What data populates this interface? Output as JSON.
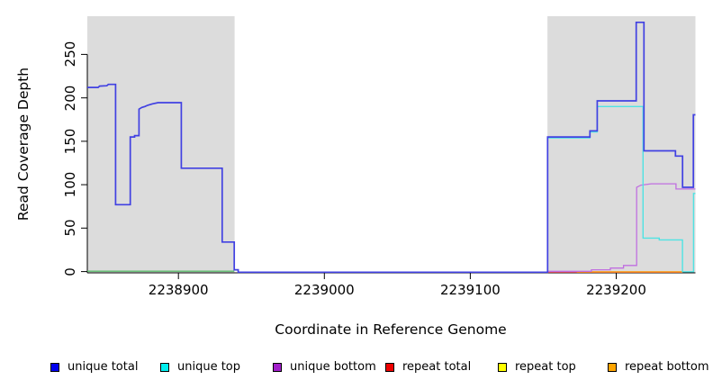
{
  "chart_data": {
    "type": "line",
    "title": "",
    "xlabel": "Coordinate in Reference Genome",
    "ylabel": "Read Coverage Depth",
    "xlim": [
      2238837.6,
      2239254.3
    ],
    "ylim": [
      -1.5,
      294
    ],
    "grid": false,
    "plot_background": "#FFFFFF",
    "x_ticks": [
      {
        "value": 2238900,
        "label": "2238900"
      },
      {
        "value": 2239000,
        "label": "2239000"
      },
      {
        "value": 2239100,
        "label": "2239100"
      },
      {
        "value": 2239200,
        "label": "2239200"
      }
    ],
    "y_ticks": [
      {
        "value": 0,
        "label": "0"
      },
      {
        "value": 50,
        "label": "50"
      },
      {
        "value": 100,
        "label": "100"
      },
      {
        "value": 150,
        "label": "150"
      },
      {
        "value": 200,
        "label": "200"
      },
      {
        "value": 250,
        "label": "250"
      }
    ],
    "shaded_regions": [
      {
        "x0": 2238837.6,
        "x1": 2238938.5,
        "color": "#DCDCDC"
      },
      {
        "x0": 2239152.9,
        "x1": 2239254.3,
        "color": "#DCDCDC"
      }
    ],
    "series": [
      {
        "name": "repeat top",
        "color": "#F2F200",
        "line_width": 1.3,
        "in_legend": true,
        "points": []
      },
      {
        "name": "repeat total",
        "color": "#D04558",
        "line_width": 1.3,
        "in_legend": true,
        "points": [
          [
            2239153,
            -0.8
          ],
          [
            2239245.5,
            -0.8
          ]
        ]
      },
      {
        "name": "repeat bottom",
        "color": "#FF9800",
        "line_width": 1.4,
        "in_legend": true,
        "points": [
          [
            2239173,
            -0.4
          ],
          [
            2239245.5,
            -0.4
          ]
        ]
      },
      {
        "name": "unlabeled green baseline",
        "color": "#5DBD6D",
        "line_width": 1.3,
        "in_legend": false,
        "points": [
          [
            2238837.6,
            0.4
          ],
          [
            2238938.3,
            0.4
          ]
        ]
      },
      {
        "name": "unique bottom",
        "color": "#C06FE0",
        "line_width": 1.3,
        "in_legend": true,
        "points": [
          [
            2239153,
            0.3
          ],
          [
            2239183,
            0.3
          ],
          [
            2239183,
            2
          ],
          [
            2239196,
            2
          ],
          [
            2239196,
            4
          ],
          [
            2239205,
            4
          ],
          [
            2239205,
            7
          ],
          [
            2239214,
            7
          ],
          [
            2239214,
            97
          ],
          [
            2239217,
            99.5
          ],
          [
            2239224,
            101
          ],
          [
            2239241,
            101
          ],
          [
            2239241,
            95
          ],
          [
            2239254.3,
            95
          ]
        ]
      },
      {
        "name": "unique top",
        "color": "#4FE3E3",
        "line_width": 1.4,
        "in_legend": true,
        "points": [
          [
            2239153,
            -0.5
          ],
          [
            2239153,
            153.8
          ],
          [
            2239182,
            153.8
          ],
          [
            2239182,
            160.8
          ],
          [
            2239187,
            160.8
          ],
          [
            2239187,
            190
          ],
          [
            2239218.4,
            190
          ],
          [
            2239218.4,
            38.5
          ],
          [
            2239229.5,
            38.5
          ],
          [
            2239229.5,
            36.5
          ],
          [
            2239245.4,
            36.5
          ],
          [
            2239245.4,
            -0.3
          ],
          [
            2239253,
            -0.3
          ],
          [
            2239253,
            90
          ],
          [
            2239254.3,
            90
          ]
        ]
      },
      {
        "name": "unique total",
        "color": "#4141E2",
        "line_width": 1.7,
        "in_legend": true,
        "points": [
          [
            2238837.6,
            212
          ],
          [
            2238845,
            212
          ],
          [
            2238846,
            213.5
          ],
          [
            2238851,
            214
          ],
          [
            2238852,
            215.5
          ],
          [
            2238857,
            215.5
          ],
          [
            2238857,
            77
          ],
          [
            2238867,
            77
          ],
          [
            2238867,
            155
          ],
          [
            2238870,
            155
          ],
          [
            2238870,
            156.5
          ],
          [
            2238873,
            156.5
          ],
          [
            2238873,
            187
          ],
          [
            2238875,
            189
          ],
          [
            2238877,
            190
          ],
          [
            2238879,
            191.5
          ],
          [
            2238882,
            193
          ],
          [
            2238886,
            194.5
          ],
          [
            2238902,
            194.5
          ],
          [
            2238902,
            119
          ],
          [
            2238930,
            119
          ],
          [
            2238930,
            34
          ],
          [
            2238938.3,
            34
          ],
          [
            2238938.3,
            2
          ],
          [
            2238941,
            2
          ],
          [
            2238941,
            -0.8
          ],
          [
            2239153,
            -0.8
          ],
          [
            2239153,
            155
          ],
          [
            2239182,
            155
          ],
          [
            2239182,
            162
          ],
          [
            2239187,
            162
          ],
          [
            2239187,
            196.5
          ],
          [
            2239213.7,
            196.5
          ],
          [
            2239213.7,
            287
          ],
          [
            2239219,
            287
          ],
          [
            2239219,
            139
          ],
          [
            2239240.6,
            139
          ],
          [
            2239240.6,
            133
          ],
          [
            2239245.5,
            133
          ],
          [
            2239245.5,
            97
          ],
          [
            2239252.9,
            97
          ],
          [
            2239252.9,
            180.5
          ],
          [
            2239254.3,
            180.5
          ]
        ]
      }
    ],
    "legend": {
      "position": "bottom",
      "entries": [
        {
          "label": "unique total",
          "color": "#0000EE"
        },
        {
          "label": "unique top",
          "color": "#00EEEE"
        },
        {
          "label": "unique bottom",
          "color": "#A21FCB"
        },
        {
          "label": "repeat total",
          "color": "#EE0000"
        },
        {
          "label": "repeat top",
          "color": "#FFFF00"
        },
        {
          "label": "repeat bottom",
          "color": "#FFA500"
        }
      ]
    }
  }
}
